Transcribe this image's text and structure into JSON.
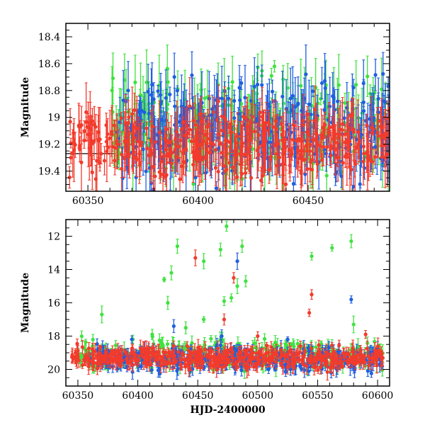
{
  "chart_data": [
    {
      "type": "scatter",
      "title": "",
      "xlabel": "",
      "ylabel": "Magnitude",
      "xlim": [
        60340,
        60487
      ],
      "ylim": [
        18.3,
        19.55
      ],
      "y_inverted": true,
      "xticks": [
        60350,
        60400,
        60450
      ],
      "yticks": [
        18.4,
        18.6,
        18.8,
        19,
        19.2,
        19.4
      ],
      "ytick_labels": [
        "18.4",
        "18.6",
        "18.8",
        "19",
        "19.2",
        "19.4"
      ],
      "error_bars": true,
      "reference_line": {
        "y": 19.27,
        "x_range": [
          60340,
          60362
        ]
      },
      "series": [
        {
          "color": "#3fe23f",
          "x_range": [
            60360,
            60487
          ],
          "y_center": 19.05,
          "y_spread": 0.4,
          "n": 260
        },
        {
          "color": "#1f5fe0",
          "x_range": [
            60363,
            60487
          ],
          "y_center": 19.1,
          "y_spread": 0.4,
          "n": 330
        },
        {
          "color": "#f23b2c",
          "x_range": [
            60341,
            60487
          ],
          "y_center": 19.2,
          "y_spread": 0.25,
          "n": 420
        }
      ]
    },
    {
      "type": "scatter",
      "title": "",
      "xlabel": "HJD-2400000",
      "ylabel": "Magnitude",
      "xlim": [
        60340,
        60610
      ],
      "ylim": [
        11,
        21
      ],
      "y_inverted": true,
      "xticks": [
        60350,
        60400,
        60450,
        60500,
        60550,
        60600
      ],
      "yticks": [
        12,
        14,
        16,
        18,
        20
      ],
      "ytick_labels": [
        "12",
        "14",
        "16",
        "18",
        "20"
      ],
      "error_bars": true,
      "series": [
        {
          "color": "#3fe23f",
          "x_range": [
            60350,
            60605
          ],
          "y_center": 19.1,
          "y_spread": 1.0,
          "n": 320,
          "outliers": [
            [
              60370,
              16.7
            ],
            [
              60422,
              14.6
            ],
            [
              60428,
              14.2
            ],
            [
              60425,
              16.0
            ],
            [
              60433,
              12.6
            ],
            [
              60455,
              13.5
            ],
            [
              60469,
              12.8
            ],
            [
              60474,
              11.4
            ],
            [
              60472,
              15.9
            ],
            [
              60478,
              15.7
            ],
            [
              60483,
              15.0
            ],
            [
              60487,
              12.6
            ],
            [
              60490,
              14.7
            ],
            [
              60545,
              13.2
            ],
            [
              60562,
              12.7
            ],
            [
              60578,
              12.3
            ],
            [
              60580,
              17.3
            ],
            [
              60455,
              17.0
            ],
            [
              60440,
              17.5
            ],
            [
              60412,
              17.9
            ]
          ]
        },
        {
          "color": "#1f5fe0",
          "x_range": [
            60360,
            60605
          ],
          "y_center": 19.4,
          "y_spread": 0.8,
          "n": 360,
          "outliers": [
            [
              60483,
              13.5
            ],
            [
              60578,
              15.8
            ],
            [
              60395,
              18.2
            ],
            [
              60470,
              18.0
            ],
            [
              60430,
              17.4
            ],
            [
              60525,
              18.2
            ]
          ]
        },
        {
          "color": "#f23b2c",
          "x_range": [
            60345,
            60605
          ],
          "y_center": 19.3,
          "y_spread": 0.7,
          "n": 460,
          "outliers": [
            [
              60448,
              13.3
            ],
            [
              60480,
              14.5
            ],
            [
              60545,
              15.5
            ],
            [
              60543,
              16.6
            ],
            [
              60472,
              17.0
            ],
            [
              60590,
              17.9
            ],
            [
              60500,
              18.0
            ],
            [
              60430,
              18.6
            ]
          ]
        }
      ]
    }
  ]
}
